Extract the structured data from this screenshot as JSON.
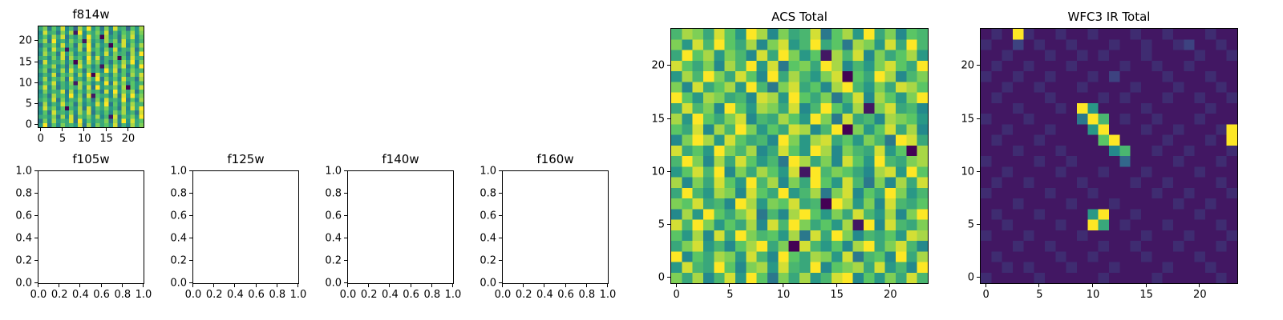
{
  "figure": {
    "background": "#ffffff",
    "frame_color": "#000000"
  },
  "colormap": {
    "name": "viridis",
    "anchors": [
      "#440154",
      "#3b528b",
      "#21918c",
      "#5ec962",
      "#fde725"
    ]
  },
  "chart_data": [
    {
      "type": "heatmap",
      "title": "f814w",
      "xlim": [
        -0.5,
        23.5
      ],
      "ylim": [
        -0.5,
        23.5
      ],
      "xticks": [
        0,
        5,
        10,
        15,
        20
      ],
      "xtick_labels": [
        "0",
        "5",
        "10",
        "15",
        "20"
      ],
      "yticks": [
        0,
        5,
        10,
        15,
        20
      ],
      "ytick_labels": [
        "0",
        "5",
        "10",
        "15",
        "20"
      ],
      "grid": false,
      "colormap": "viridis",
      "grid_shape": [
        24,
        24
      ],
      "data_encoding": "hex digit 0-15 per cell, rows listed top(y=23) to bottom(y=0)",
      "rows": [
        "9c6b8e7a5d9f8b6c7e9a5b8d",
        "7e9a6c8d1f7b9c8e6a7b9d8c",
        "8b7d9e6a8c7f9b0d8a6c9e7b",
        "9d6f8a7c9b1e8a7d9c6e8b7a",
        "6a9c7e8b6d9f7c8a0b9e7c8d",
        "8c7e9b1a8d6f9b7c8e7a9d6b",
        "7d9b6e8c7a9d6b8e7c9a6d8f",
        "9a7c8e6d9b7f8e6a9c0b7e9a",
        "6e8a9c7b0d8e9c7a6b8d9f7c",
        "8b9d7a6c8e9b7a1c8d9e6b7f",
        "9c6a8d7e9b6c8a7f9e6b8c9a",
        "7a8e6b9c7d8f0e9a7c8b6d9e",
        "8d7b9c6e8a7d9f6c8b7e9a6d",
        "6b9e7a8c1d9b7a8f6e9c7b8a",
        "9e7c6a8b9d7e6f8a9c7d0b8e",
        "7c8a9e6d7b8c9a6e7f8c9d6b",
        "8a6d9b7f8c6e1b9a7d6e8f9c",
        "9b8e6c7a9d8b6c7e9a8f6b7d",
        "6d7a8e9b6c7a8e9f6b7c8d9a",
        "8e9c7b0a8d6e7b9c8a6d7e9f",
        "7b6e9a8c7d9e6a8b7c9d8a6e",
        "9a8c6d7e6b9c8d7a1e6b9c8f",
        "6c7d8a9e6f7b8a9c6d7f8e9b",
        "8f6b7c9a8e6d7c9b8e6a7d9c"
      ]
    },
    {
      "type": "empty",
      "title": "f105w",
      "xlim": [
        0,
        1
      ],
      "ylim": [
        0,
        1
      ],
      "xticks": [
        0,
        0.2,
        0.4,
        0.6,
        0.8,
        1.0
      ],
      "xtick_labels": [
        "0.0",
        "0.2",
        "0.4",
        "0.6",
        "0.8",
        "1.0"
      ],
      "yticks": [
        0,
        0.2,
        0.4,
        0.6,
        0.8,
        1.0
      ],
      "ytick_labels": [
        "0.0",
        "0.2",
        "0.4",
        "0.6",
        "0.8",
        "1.0"
      ],
      "grid": false
    },
    {
      "type": "empty",
      "title": "f125w",
      "xlim": [
        0,
        1
      ],
      "ylim": [
        0,
        1
      ],
      "xticks": [
        0,
        0.2,
        0.4,
        0.6,
        0.8,
        1.0
      ],
      "xtick_labels": [
        "0.0",
        "0.2",
        "0.4",
        "0.6",
        "0.8",
        "1.0"
      ],
      "yticks": [
        0,
        0.2,
        0.4,
        0.6,
        0.8,
        1.0
      ],
      "ytick_labels": [
        "0.0",
        "0.2",
        "0.4",
        "0.6",
        "0.8",
        "1.0"
      ],
      "grid": false
    },
    {
      "type": "empty",
      "title": "f140w",
      "xlim": [
        0,
        1
      ],
      "ylim": [
        0,
        1
      ],
      "xticks": [
        0,
        0.2,
        0.4,
        0.6,
        0.8,
        1.0
      ],
      "xtick_labels": [
        "0.0",
        "0.2",
        "0.4",
        "0.6",
        "0.8",
        "1.0"
      ],
      "yticks": [
        0,
        0.2,
        0.4,
        0.6,
        0.8,
        1.0
      ],
      "ytick_labels": [
        "0.0",
        "0.2",
        "0.4",
        "0.6",
        "0.8",
        "1.0"
      ],
      "grid": false
    },
    {
      "type": "empty",
      "title": "f160w",
      "xlim": [
        0,
        1
      ],
      "ylim": [
        0,
        1
      ],
      "xticks": [
        0,
        0.2,
        0.4,
        0.6,
        0.8,
        1.0
      ],
      "xtick_labels": [
        "0.0",
        "0.2",
        "0.4",
        "0.6",
        "0.8",
        "1.0"
      ],
      "yticks": [
        0,
        0.2,
        0.4,
        0.6,
        0.8,
        1.0
      ],
      "ytick_labels": [
        "0.0",
        "0.2",
        "0.4",
        "0.6",
        "0.8",
        "1.0"
      ],
      "grid": false
    },
    {
      "type": "heatmap",
      "title": "ACS Total",
      "xlim": [
        -0.5,
        23.5
      ],
      "ylim": [
        -0.5,
        23.5
      ],
      "xticks": [
        0,
        5,
        10,
        15,
        20
      ],
      "xtick_labels": [
        "0",
        "5",
        "10",
        "15",
        "20"
      ],
      "yticks": [
        0,
        5,
        10,
        15,
        20
      ],
      "ytick_labels": [
        "0",
        "5",
        "10",
        "15",
        "20"
      ],
      "grid": false,
      "colormap": "viridis",
      "grid_shape": [
        24,
        24
      ],
      "data_encoding": "hex digit 0-15 per cell, rows listed top(y=23) to bottom(y=0)",
      "rows": [
        "adc9eb8fd7c9ae6bd8f9c7ba",
        "c8eafb9d7ce8af9b6dc8e9fa",
        "9fbd8ca7e9fc8b1dae7c9bd8",
        "eb9c7daf8e6bc9fd7a8ceb9f",
        "8dafc9eb7f9da8ce0b9fd7ac",
        "c7e9bd8fa6ce9b7dfa8c9edb",
        "fb8dc9a7ed8fb9c6ae7db8cf",
        "9eac7fb8dc9e7afb8d1ce9a7",
        "d8fb9ce7a9db8fc6e9a7dcb8",
        "b9e7dafc8b9ed7af0c8be9d7",
        "7cfd8eb9a7fc8de9b8ca6fe9",
        "e9b8fcad79eb8fd7ca9e8b0d",
        "afc7d9eb8a6fd9c7eb8fa9cd",
        "8beaf7c9db8e1facb97de8fb",
        "d7c9eb8fad7c9fb8ea6c7d9e",
        "9fa8dc7eb9f8ad6ce7b9fc8a",
        "cbe9a7fd8cbe9a0fd8c7ea9b",
        "7d8fb9ce6a7dfb8c9ea8d7cf",
        "eafc8b9d7eafc9b8d1f7ea9c",
        "b8d7e9fcab8d6e9fc7a9b8ed",
        "9ce8a7bdf9c0ea8b7df9cea7",
        "f7b9dc8ea7fb9dc8e6ab7f9d",
        "8ea9fb7cd8ea9f7bcd9e8a7f",
        "c9d7ae8fb6c9d8aef7b8c9ea"
      ]
    },
    {
      "type": "heatmap",
      "title": "WFC3 IR Total",
      "xlim": [
        -0.5,
        23.5
      ],
      "ylim": [
        -0.5,
        23.5
      ],
      "xticks": [
        0,
        5,
        10,
        15,
        20
      ],
      "xtick_labels": [
        "0",
        "5",
        "10",
        "15",
        "20"
      ],
      "yticks": [
        0,
        5,
        10,
        15,
        20
      ],
      "ytick_labels": [
        "0",
        "5",
        "10",
        "15",
        "20"
      ],
      "grid": false,
      "colormap": "viridis",
      "grid_shape": [
        24,
        24
      ],
      "data_encoding": "hex digit 0-15 per cell, rows listed top(y=23) to bottom(y=0)",
      "rows": [
        "121f21121121112112111211",
        "211312112111211211231121",
        "112111211212111211112112",
        "121121112111121121121111",
        "211211211121311112111211",
        "112112111211112111211121",
        "121111211112121112112112",
        "111211121f81111211111211",
        "2111211116fa121121112111",
        "11211121118f11121121112f",
        "12111211111bf1111211121f",
        "1112111211117a1121121112",
        "211112112111151111211121",
        "112111121112111211112111",
        "121121111211112112111121",
        "211111211121111121121112",
        "111211112111211111211211",
        "12111211118f112111112111",
        "1121111211f9121112111121",
        "211121111211111211121112",
        "111211211112112111211121",
        "121111121121111211112111",
        "112121112111211112111211",
        "211112111112111121111121"
      ]
    }
  ]
}
